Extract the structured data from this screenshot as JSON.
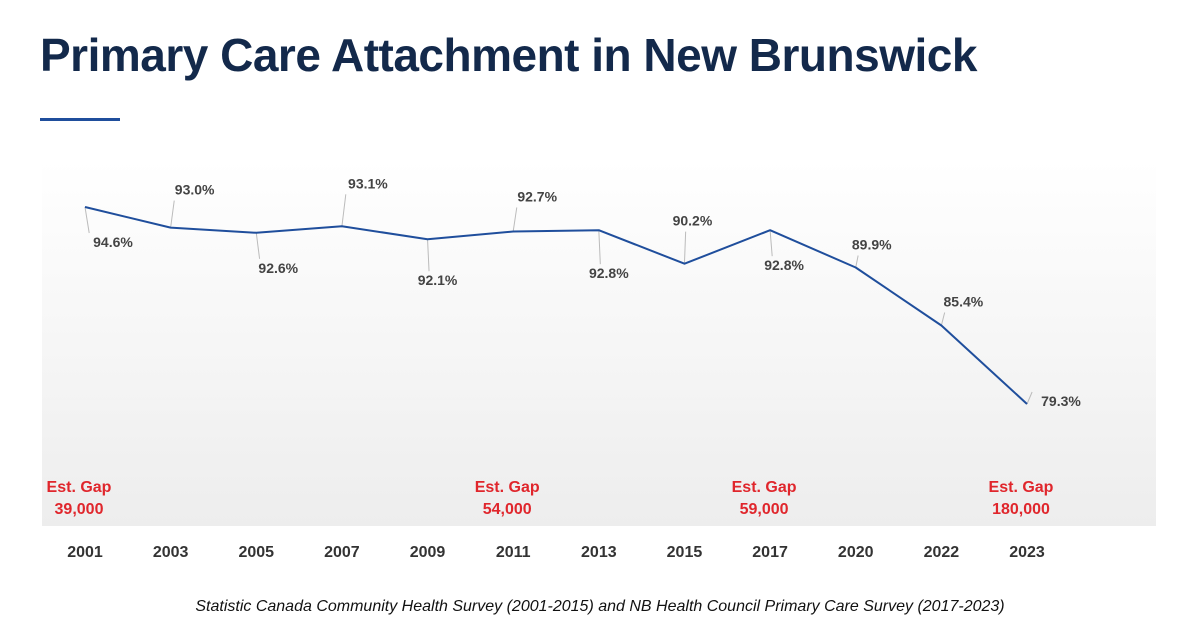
{
  "page": {
    "title": "Primary Care Attachment in New Brunswick",
    "source": "Statistic Canada Community Health Survey (2001-2015) and NB Health Council Primary Care Survey (2017-2023)"
  },
  "colors": {
    "title": "#13294b",
    "line": "#1f4e9c",
    "gap": "#e0262c",
    "leader": "#bbbbbb"
  },
  "chart_data": {
    "type": "line",
    "title": "",
    "xlabel": "",
    "ylabel": "",
    "categories": [
      "2001",
      "2003",
      "2005",
      "2007",
      "2009",
      "2011",
      "2013",
      "2015",
      "2017",
      "2020",
      "2022",
      "2023"
    ],
    "series": [
      {
        "values": [
          94.6,
          93.0,
          92.6,
          93.1,
          92.1,
          92.7,
          92.8,
          90.2,
          92.8,
          89.9,
          85.4,
          79.3
        ],
        "labels": [
          "94.6%",
          "93.0%",
          "92.6%",
          "93.1%",
          "92.1%",
          "92.7%",
          "92.8%",
          "90.2%",
          "92.8%",
          "89.9%",
          "85.4%",
          "79.3%"
        ]
      }
    ],
    "annotations": [
      {
        "category": "2001",
        "line1": "Est. Gap",
        "line2": "39,000"
      },
      {
        "category": "2011",
        "line1": "Est. Gap",
        "line2": "54,000"
      },
      {
        "category": "2017",
        "line1": "Est. Gap",
        "line2": "59,000"
      },
      {
        "category": "2023",
        "line1": "Est. Gap",
        "line2": "180,000"
      }
    ],
    "grid": false,
    "legend": "none"
  }
}
